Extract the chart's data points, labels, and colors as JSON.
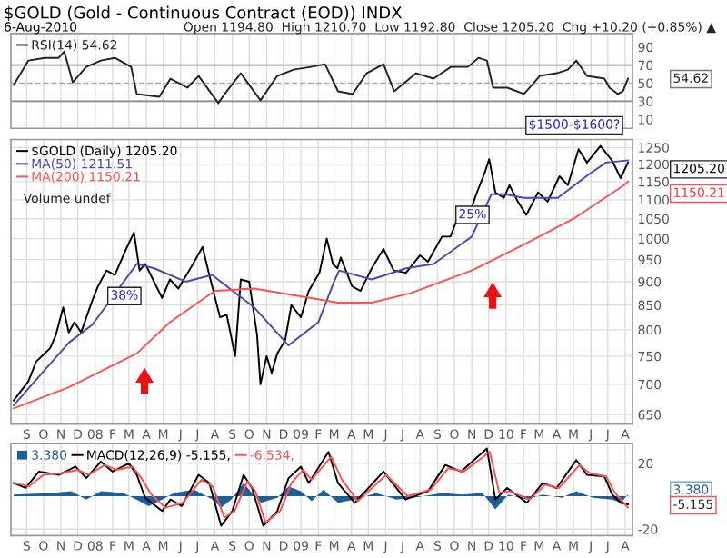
{
  "chart_data": [
    {
      "type": "line",
      "title": "$GOLD (Gold - Continuous Contract (EOD)) INDX",
      "subtitle": "6-Aug-2010",
      "annotations": [
        "Open 1194.80  High 1210.70  Low 1192.80  Close 1205.20  Chg +10.20 (+0.85%) ▲",
        "54.62"
      ],
      "xlim": [
        "2007-08-04",
        "2010-08-14"
      ],
      "ylim": [
        0,
        105
      ],
      "yticks": [
        90,
        70,
        50,
        30,
        10
      ],
      "grid": "x",
      "legend": "top left",
      "tick_labels": "y",
      "ref_lines": [
        {
          "axis": "y",
          "value": 70,
          "color": "#888888",
          "line_style": "solid"
        },
        {
          "axis": "y",
          "value": 50,
          "color": "#aaaaaa",
          "line_style": "dashed"
        },
        {
          "axis": "y",
          "value": 30,
          "color": "#888888",
          "line_style": "solid"
        }
      ],
      "series": [
        {
          "name": "RSI(14) 54.62",
          "color": "#222222",
          "x": [
            "2007-08-09",
            "2007-09-04",
            "2007-10-03",
            "2007-10-28",
            "2007-11-07",
            "2007-11-22",
            "2007-12-16",
            "2008-01-11",
            "2008-02-05",
            "2008-03-05",
            "2008-03-15",
            "2008-04-24",
            "2008-05-14",
            "2008-06-13",
            "2008-07-03",
            "2008-08-07",
            "2008-08-22",
            "2008-09-16",
            "2008-10-21",
            "2008-11-20",
            "2008-12-19",
            "2009-01-19",
            "2009-02-13",
            "2009-03-08",
            "2009-04-03",
            "2009-04-28",
            "2009-05-28",
            "2009-06-16",
            "2009-07-25",
            "2009-08-25",
            "2009-09-25",
            "2009-10-25",
            "2009-11-13",
            "2009-11-28",
            "2009-12-09",
            "2010-01-03",
            "2010-02-02",
            "2010-03-02",
            "2010-04-01",
            "2010-04-21",
            "2010-05-06",
            "2010-05-25",
            "2010-06-25",
            "2010-07-04",
            "2010-07-19",
            "2010-07-28",
            "2010-08-06"
          ],
          "values": [
            48,
            75,
            78,
            78,
            85,
            51,
            68,
            75,
            78,
            68,
            38,
            35,
            55,
            45,
            58,
            28,
            41,
            61,
            31,
            58,
            65,
            68,
            71,
            41,
            38,
            61,
            71,
            41,
            61,
            55,
            68,
            68,
            78,
            75,
            45,
            45,
            38,
            58,
            61,
            65,
            75,
            58,
            55,
            45,
            38,
            41,
            55
          ]
        }
      ]
    },
    {
      "type": "line",
      "log": "y",
      "xlim": [
        "2007-08-04",
        "2010-08-14"
      ],
      "ylim": [
        635,
        1275
      ],
      "yticks": [
        1250,
        1200,
        1150,
        1100,
        1050,
        1000,
        950,
        900,
        850,
        800,
        750,
        700,
        650
      ],
      "xticks": [
        {
          "value": "2007-09-01",
          "label": "S"
        },
        {
          "value": "2007-10-01",
          "label": "O"
        },
        {
          "value": "2007-11-01",
          "label": "N"
        },
        {
          "value": "2007-12-01",
          "label": "D"
        },
        {
          "value": "2008-01-01",
          "label": "08"
        },
        {
          "value": "2008-02-01",
          "label": "F"
        },
        {
          "value": "2008-03-01",
          "label": "M"
        },
        {
          "value": "2008-04-01",
          "label": "A"
        },
        {
          "value": "2008-05-01",
          "label": "M"
        },
        {
          "value": "2008-06-01",
          "label": "J"
        },
        {
          "value": "2008-07-01",
          "label": "J"
        },
        {
          "value": "2008-08-01",
          "label": "A"
        },
        {
          "value": "2008-09-01",
          "label": "S"
        },
        {
          "value": "2008-10-01",
          "label": "O"
        },
        {
          "value": "2008-11-01",
          "label": "N"
        },
        {
          "value": "2008-12-01",
          "label": "D"
        },
        {
          "value": "2009-01-01",
          "label": "09"
        },
        {
          "value": "2009-02-01",
          "label": "F"
        },
        {
          "value": "2009-03-01",
          "label": "M"
        },
        {
          "value": "2009-04-01",
          "label": "A"
        },
        {
          "value": "2009-05-01",
          "label": "M"
        },
        {
          "value": "2009-06-01",
          "label": "J"
        },
        {
          "value": "2009-07-01",
          "label": "J"
        },
        {
          "value": "2009-08-01",
          "label": "A"
        },
        {
          "value": "2009-09-01",
          "label": "S"
        },
        {
          "value": "2009-10-01",
          "label": "O"
        },
        {
          "value": "2009-11-01",
          "label": "N"
        },
        {
          "value": "2009-12-01",
          "label": "D"
        },
        {
          "value": "2010-01-01",
          "label": "10"
        },
        {
          "value": "2010-02-01",
          "label": "F"
        },
        {
          "value": "2010-03-01",
          "label": "M"
        },
        {
          "value": "2010-04-01",
          "label": "A"
        },
        {
          "value": "2010-05-01",
          "label": "M"
        },
        {
          "value": "2010-06-01",
          "label": "J"
        },
        {
          "value": "2010-07-01",
          "label": "J"
        },
        {
          "value": "2010-08-01",
          "label": "A"
        }
      ],
      "grid": true,
      "legend": "top left",
      "annotations": [
        "Volume undef",
        "38%",
        "25%",
        "$1500-$1600?",
        "1205.20",
        "1150.21"
      ],
      "series": [
        {
          "name": "$GOLD (Daily) 1205.20",
          "color": "#000000",
          "x": [
            "2007-08-09",
            "2007-09-04",
            "2007-09-18",
            "2007-10-13",
            "2007-10-23",
            "2007-11-05",
            "2007-11-15",
            "2007-11-25",
            "2007-12-07",
            "2007-12-27",
            "2008-01-06",
            "2008-01-21",
            "2008-02-05",
            "2008-02-25",
            "2008-03-10",
            "2008-03-20",
            "2008-03-30",
            "2008-04-29",
            "2008-05-13",
            "2008-05-28",
            "2008-06-23",
            "2008-07-10",
            "2008-07-22",
            "2008-08-10",
            "2008-08-22",
            "2008-09-06",
            "2008-09-16",
            "2008-10-01",
            "2008-10-15",
            "2008-10-21",
            "2008-11-01",
            "2008-11-10",
            "2008-11-20",
            "2008-12-04",
            "2008-12-15",
            "2009-01-01",
            "2009-01-15",
            "2009-02-03",
            "2009-02-16",
            "2009-02-27",
            "2009-03-07",
            "2009-03-13",
            "2009-04-02",
            "2009-04-17",
            "2009-05-07",
            "2009-05-28",
            "2009-06-15",
            "2009-07-07",
            "2009-08-01",
            "2009-08-15",
            "2009-09-09",
            "2009-09-24",
            "2009-10-09",
            "2009-10-24",
            "2009-11-09",
            "2009-11-24",
            "2009-12-02",
            "2009-12-13",
            "2009-12-28",
            "2010-01-07",
            "2010-01-22",
            "2010-02-06",
            "2010-02-27",
            "2010-03-16",
            "2010-04-06",
            "2010-04-21",
            "2010-05-10",
            "2010-05-25",
            "2010-06-18",
            "2010-07-09",
            "2010-07-24",
            "2010-08-06"
          ],
          "values": [
            673,
            705,
            740,
            765,
            790,
            845,
            795,
            815,
            795,
            860,
            890,
            925,
            915,
            975,
            1015,
            925,
            940,
            865,
            905,
            885,
            940,
            980,
            915,
            825,
            830,
            750,
            905,
            900,
            790,
            700,
            750,
            720,
            755,
            780,
            850,
            825,
            880,
            920,
            1000,
            940,
            930,
            955,
            890,
            880,
            930,
            975,
            925,
            920,
            960,
            945,
            1005,
            1005,
            1060,
            1045,
            1115,
            1175,
            1215,
            1120,
            1105,
            1140,
            1095,
            1060,
            1120,
            1095,
            1165,
            1140,
            1245,
            1205,
            1255,
            1210,
            1160,
            1205.2
          ]
        },
        {
          "name": "MA(50) 1211.51",
          "color": "#4848b0",
          "x": [
            "2007-08-09",
            "2007-11-15",
            "2007-12-27",
            "2008-03-15",
            "2008-04-15",
            "2008-06-10",
            "2008-07-27",
            "2008-10-10",
            "2008-12-10",
            "2009-02-01",
            "2009-03-01",
            "2009-03-10",
            "2009-05-07",
            "2009-07-07",
            "2009-08-25",
            "2009-11-01",
            "2009-12-06",
            "2009-12-30",
            "2010-02-01",
            "2010-04-03",
            "2010-06-01",
            "2010-06-28",
            "2010-08-06"
          ],
          "values": [
            665,
            775,
            810,
            940,
            930,
            900,
            915,
            845,
            770,
            815,
            900,
            925,
            905,
            930,
            940,
            1005,
            1115,
            1115,
            1105,
            1105,
            1175,
            1205,
            1211.51
          ]
        },
        {
          "name": "MA(200) 1150.21",
          "color": "#ff5050",
          "x": [
            "2007-08-09",
            "2007-11-15",
            "2008-03-15",
            "2008-05-13",
            "2008-08-01",
            "2008-10-10",
            "2009-03-08",
            "2009-05-07",
            "2009-07-15",
            "2009-11-01",
            "2010-02-01",
            "2010-05-01",
            "2010-07-30",
            "2010-08-06"
          ],
          "values": [
            660,
            695,
            755,
            815,
            880,
            885,
            855,
            855,
            875,
            925,
            985,
            1050,
            1140,
            1150.21
          ]
        }
      ]
    },
    {
      "type": "line",
      "xlim": [
        "2007-08-04",
        "2010-08-14"
      ],
      "ylim": [
        -24,
        32
      ],
      "yticks": [
        20,
        -20
      ],
      "grid": true,
      "legend": "top left",
      "xticks": [
        {
          "value": "2007-09-01",
          "label": "S"
        },
        {
          "value": "2007-10-01",
          "label": "O"
        },
        {
          "value": "2007-11-01",
          "label": "N"
        },
        {
          "value": "2007-12-01",
          "label": "D"
        },
        {
          "value": "2008-01-01",
          "label": "08"
        },
        {
          "value": "2008-02-01",
          "label": "F"
        },
        {
          "value": "2008-03-01",
          "label": "M"
        },
        {
          "value": "2008-04-01",
          "label": "A"
        },
        {
          "value": "2008-05-01",
          "label": "M"
        },
        {
          "value": "2008-06-01",
          "label": "J"
        },
        {
          "value": "2008-07-01",
          "label": "J"
        },
        {
          "value": "2008-08-01",
          "label": "A"
        },
        {
          "value": "2008-09-01",
          "label": "S"
        },
        {
          "value": "2008-10-01",
          "label": "O"
        },
        {
          "value": "2008-11-01",
          "label": "N"
        },
        {
          "value": "2008-12-01",
          "label": "D"
        },
        {
          "value": "2009-01-01",
          "label": "09"
        },
        {
          "value": "2009-02-01",
          "label": "F"
        },
        {
          "value": "2009-03-01",
          "label": "M"
        },
        {
          "value": "2009-04-01",
          "label": "A"
        },
        {
          "value": "2009-05-01",
          "label": "M"
        },
        {
          "value": "2009-06-01",
          "label": "J"
        },
        {
          "value": "2009-07-01",
          "label": "J"
        },
        {
          "value": "2009-08-01",
          "label": "A"
        },
        {
          "value": "2009-09-01",
          "label": "S"
        },
        {
          "value": "2009-10-01",
          "label": "O"
        },
        {
          "value": "2009-11-01",
          "label": "N"
        },
        {
          "value": "2009-12-01",
          "label": "D"
        },
        {
          "value": "2010-01-01",
          "label": "10"
        },
        {
          "value": "2010-02-01",
          "label": "F"
        },
        {
          "value": "2010-03-01",
          "label": "M"
        },
        {
          "value": "2010-04-01",
          "label": "A"
        },
        {
          "value": "2010-05-01",
          "label": "M"
        },
        {
          "value": "2010-06-01",
          "label": "J"
        },
        {
          "value": "2010-07-01",
          "label": "J"
        },
        {
          "value": "2010-08-01",
          "label": "A"
        }
      ],
      "annotations": [
        "3.380",
        "-5.155"
      ],
      "series": [
        {
          "name": "3.380",
          "type": "area",
          "color": "#1f5f99",
          "x": [
            "2007-08-09",
            "2007-10-15",
            "2007-11-20",
            "2007-12-16",
            "2008-01-11",
            "2008-02-20",
            "2008-03-20",
            "2008-04-05",
            "2008-04-29",
            "2008-05-20",
            "2008-06-25",
            "2008-07-28",
            "2008-08-12",
            "2008-08-30",
            "2008-09-21",
            "2008-10-06",
            "2008-10-22",
            "2008-11-20",
            "2008-12-10",
            "2009-01-01",
            "2009-01-20",
            "2009-02-10",
            "2009-03-08",
            "2009-04-07",
            "2009-05-15",
            "2009-06-20",
            "2009-07-20",
            "2009-09-10",
            "2009-10-15",
            "2009-11-20",
            "2009-12-13",
            "2010-01-05",
            "2010-02-07",
            "2010-03-07",
            "2010-04-10",
            "2010-05-06",
            "2010-06-05",
            "2010-07-09",
            "2010-07-24",
            "2010-08-06"
          ],
          "values": [
            1,
            2,
            3,
            -2,
            3,
            2,
            -3,
            -6,
            -2,
            2,
            4,
            -2,
            -7,
            -2,
            8,
            2,
            -4,
            -1,
            6,
            3,
            -3,
            4,
            -4,
            -2,
            2,
            -2,
            -1,
            2,
            1,
            2,
            -8,
            1,
            -2,
            1,
            -1,
            3,
            -1,
            -2,
            -4,
            1
          ]
        },
        {
          "name": "MACD(12,26,9) -5.155,",
          "color": "#000000",
          "x": [
            "2007-08-09",
            "2007-08-30",
            "2007-09-23",
            "2007-10-28",
            "2007-11-27",
            "2007-12-16",
            "2008-01-11",
            "2008-02-01",
            "2008-03-01",
            "2008-03-15",
            "2008-03-30",
            "2008-04-29",
            "2008-05-14",
            "2008-06-03",
            "2008-07-03",
            "2008-07-22",
            "2008-08-12",
            "2008-09-01",
            "2008-09-21",
            "2008-10-06",
            "2008-10-26",
            "2008-11-20",
            "2008-12-10",
            "2009-01-01",
            "2009-01-15",
            "2009-02-19",
            "2009-03-08",
            "2009-04-07",
            "2009-05-28",
            "2009-07-06",
            "2009-08-15",
            "2009-09-15",
            "2009-10-13",
            "2009-11-28",
            "2009-12-13",
            "2010-01-03",
            "2010-02-07",
            "2010-03-07",
            "2010-04-01",
            "2010-05-06",
            "2010-05-25",
            "2010-06-25",
            "2010-07-09",
            "2010-07-24",
            "2010-08-06"
          ],
          "values": [
            8,
            5,
            15,
            13,
            18,
            11,
            21,
            15,
            20,
            13,
            -1,
            -9,
            -2,
            -6,
            13,
            8,
            -18,
            -9,
            13,
            5,
            -18,
            -9,
            11,
            18,
            8,
            27,
            8,
            -4,
            15,
            -2,
            3,
            19,
            15,
            29,
            -2,
            5,
            -4,
            8,
            5,
            22,
            13,
            12,
            1,
            -4,
            -5
          ]
        },
        {
          "name": "-6.534,",
          "color": "#ff5050",
          "x": [
            "2007-08-09",
            "2007-09-05",
            "2007-10-01",
            "2007-11-01",
            "2007-12-01",
            "2007-12-20",
            "2008-01-18",
            "2008-02-08",
            "2008-03-08",
            "2008-03-25",
            "2008-04-10",
            "2008-05-05",
            "2008-06-05",
            "2008-07-08",
            "2008-07-28",
            "2008-08-18",
            "2008-09-05",
            "2008-09-28",
            "2008-10-12",
            "2008-10-30",
            "2008-11-25",
            "2008-12-15",
            "2009-01-05",
            "2009-01-20",
            "2009-02-24",
            "2009-03-15",
            "2009-04-12",
            "2009-06-02",
            "2009-07-10",
            "2009-08-20",
            "2009-09-20",
            "2009-10-18",
            "2009-12-03",
            "2009-12-20",
            "2010-01-08",
            "2010-02-12",
            "2010-03-12",
            "2010-04-05",
            "2010-05-12",
            "2010-05-30",
            "2010-06-28",
            "2010-07-14",
            "2010-08-06"
          ],
          "values": [
            8,
            6,
            13,
            14,
            16,
            13,
            19,
            16,
            18,
            10,
            1,
            -7,
            -4,
            10,
            6,
            -13,
            -9,
            9,
            3,
            -16,
            -9,
            8,
            16,
            10,
            24,
            10,
            -3,
            13,
            0,
            4,
            17,
            15,
            27,
            2,
            3,
            -2,
            7,
            5,
            19,
            14,
            12,
            2,
            -7
          ]
        }
      ]
    }
  ]
}
